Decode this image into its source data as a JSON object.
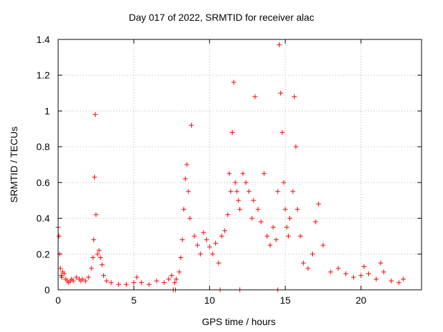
{
  "chart_data": {
    "type": "scatter",
    "title": "Day 017 of 2022, SRMTID for receiver alac",
    "xlabel": "GPS time / hours",
    "ylabel": "SRMTID / TECUs",
    "xlim": [
      0,
      24
    ],
    "ylim": [
      0,
      1.4
    ],
    "xticks": [
      0,
      5,
      10,
      15,
      20
    ],
    "yticks": [
      0,
      0.2,
      0.4,
      0.6,
      0.8,
      1,
      1.2,
      1.4
    ],
    "ytick_labels": [
      "0",
      "0.2",
      "0.4",
      "0.6",
      "0.8",
      "1",
      "1.2",
      "1.4"
    ],
    "grid": true,
    "marker": "+",
    "color": "#ff0000",
    "series": [
      {
        "name": "SRMTID",
        "x": [
          0.0,
          0.05,
          0.1,
          0.15,
          0.2,
          0.25,
          0.3,
          0.4,
          0.5,
          0.6,
          0.7,
          0.8,
          0.9,
          1.0,
          1.2,
          1.4,
          1.5,
          1.6,
          1.8,
          2.0,
          2.2,
          2.3,
          2.35,
          2.4,
          2.45,
          2.5,
          2.6,
          2.7,
          2.8,
          2.9,
          3.0,
          3.2,
          3.5,
          4.0,
          4.5,
          5.0,
          5.2,
          5.5,
          6.0,
          6.5,
          7.0,
          7.3,
          7.5,
          7.7,
          7.8,
          8.0,
          8.1,
          8.2,
          8.3,
          8.4,
          8.5,
          8.6,
          8.7,
          8.8,
          9.0,
          9.2,
          9.4,
          9.6,
          9.8,
          10.0,
          10.2,
          10.4,
          10.6,
          10.8,
          11.0,
          11.2,
          11.3,
          11.4,
          11.5,
          11.6,
          11.7,
          11.8,
          11.9,
          12.0,
          12.2,
          12.4,
          12.6,
          12.8,
          12.9,
          13.0,
          13.2,
          13.4,
          13.6,
          13.8,
          14.0,
          14.2,
          14.4,
          14.5,
          14.6,
          14.7,
          14.8,
          14.9,
          15.0,
          15.1,
          15.2,
          15.3,
          15.5,
          15.6,
          15.7,
          15.8,
          16.0,
          16.2,
          16.5,
          16.8,
          17.0,
          17.2,
          17.5,
          18.0,
          18.5,
          19.0,
          19.5,
          20.0,
          20.2,
          20.5,
          21.0,
          21.3,
          21.5,
          22.0,
          22.5,
          22.8
        ],
        "y": [
          0.35,
          0.3,
          0.2,
          0.12,
          0.08,
          0.07,
          0.1,
          0.09,
          0.06,
          0.05,
          0.04,
          0.05,
          0.06,
          0.05,
          0.07,
          0.06,
          0.05,
          0.06,
          0.05,
          0.07,
          0.12,
          0.18,
          0.28,
          0.63,
          0.98,
          0.42,
          0.2,
          0.22,
          0.18,
          0.14,
          0.08,
          0.05,
          0.04,
          0.03,
          0.03,
          0.04,
          0.07,
          0.04,
          0.03,
          0.05,
          0.04,
          0.06,
          0.08,
          0.04,
          0.06,
          0.1,
          0.18,
          0.28,
          0.45,
          0.62,
          0.7,
          0.55,
          0.4,
          0.92,
          0.3,
          0.25,
          0.2,
          0.32,
          0.28,
          0.24,
          0.2,
          0.26,
          0.15,
          0.3,
          0.33,
          0.42,
          0.65,
          0.55,
          0.88,
          1.16,
          0.6,
          0.55,
          0.5,
          0.45,
          0.65,
          0.6,
          0.55,
          0.4,
          0.5,
          1.08,
          0.45,
          0.38,
          0.65,
          0.3,
          0.25,
          0.35,
          0.28,
          0.55,
          1.37,
          1.1,
          0.88,
          0.6,
          0.45,
          0.35,
          0.3,
          0.4,
          0.55,
          1.08,
          0.8,
          0.45,
          0.3,
          0.15,
          0.12,
          0.2,
          0.38,
          0.48,
          0.25,
          0.1,
          0.12,
          0.09,
          0.07,
          0.08,
          0.13,
          0.09,
          0.06,
          0.15,
          0.1,
          0.05,
          0.04,
          0.06
        ],
        "zero_marks_x": [
          7.6,
          7.75,
          10.7,
          12.0,
          14.5
        ]
      }
    ]
  }
}
